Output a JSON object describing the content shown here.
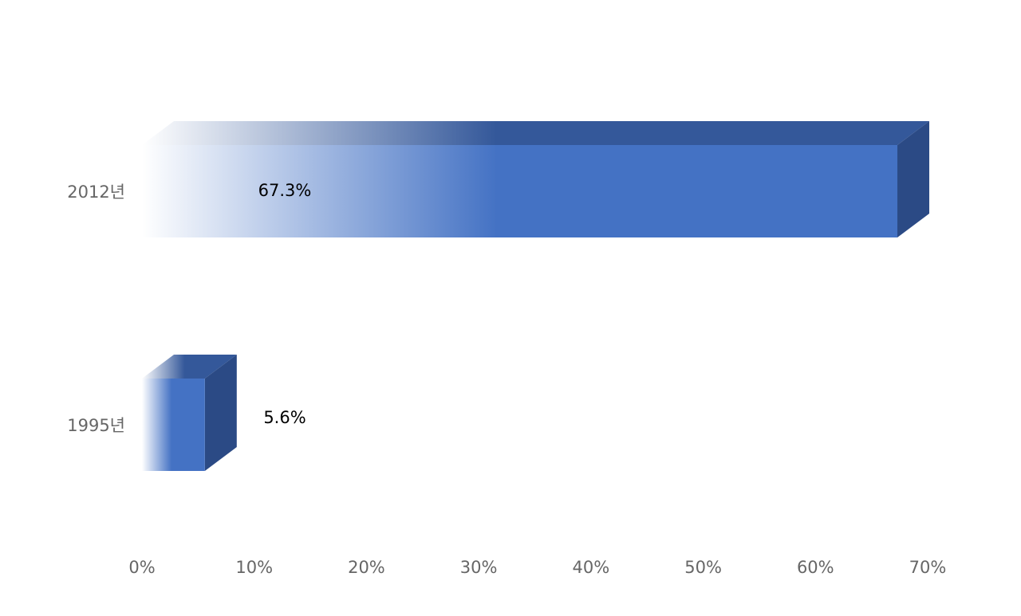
{
  "chart_data": {
    "type": "bar3d_horizontal",
    "categories": [
      "2012년",
      "1995년"
    ],
    "values": [
      67.3,
      5.6
    ],
    "value_labels": [
      "67.3%",
      "5.6%"
    ],
    "color": "#4472c4",
    "xlim": [
      0,
      70
    ],
    "xticks": [
      {
        "value": 0,
        "label": "0%"
      },
      {
        "value": 10,
        "label": "10%"
      },
      {
        "value": 20,
        "label": "20%"
      },
      {
        "value": 30,
        "label": "30%"
      },
      {
        "value": 40,
        "label": "40%"
      },
      {
        "value": 50,
        "label": "50%"
      },
      {
        "value": 60,
        "label": "60%"
      },
      {
        "value": 70,
        "label": "70%"
      }
    ],
    "grid": false
  }
}
